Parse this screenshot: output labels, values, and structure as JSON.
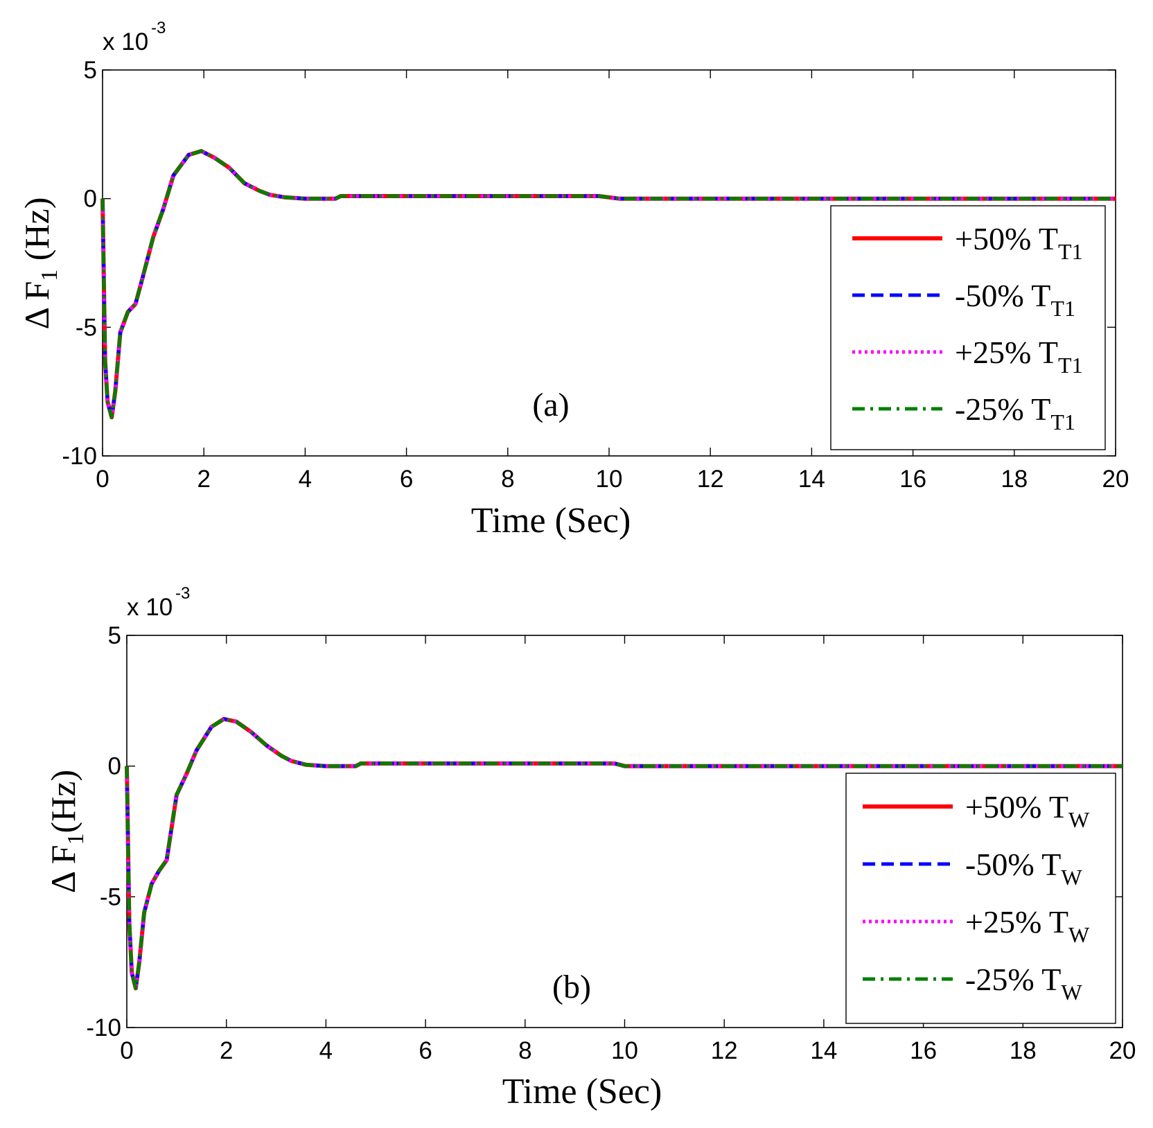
{
  "chart_data": [
    {
      "type": "line",
      "panel_label": "(a)",
      "xlabel": "Time (Sec)",
      "ylabel": "Δ F1 (Hz)",
      "ylabel_parts": {
        "delta": "Δ F",
        "sub": "1",
        "unit": " (Hz)"
      },
      "exponent_base": "x 10",
      "exponent_power": "-3",
      "xlim": [
        0,
        20
      ],
      "ylim": [
        -10,
        5
      ],
      "xticks": [
        0,
        2,
        4,
        6,
        8,
        10,
        12,
        14,
        16,
        18,
        20
      ],
      "yticks": [
        -10,
        -5,
        0,
        5
      ],
      "legend_position": "right",
      "series": [
        {
          "name": "+50% TT1",
          "label_main": "+50% T",
          "label_sub": "T1",
          "color": "#ff0000",
          "dash": "solid"
        },
        {
          "name": "-50% TT1",
          "label_main": "-50% T",
          "label_sub": "T1",
          "color": "#0000ff",
          "dash": "dashed"
        },
        {
          "name": "+25% TT1",
          "label_main": "+25% T",
          "label_sub": "T1",
          "color": "#ff00ff",
          "dash": "dotted"
        },
        {
          "name": "-25% TT1",
          "label_main": "-25% T",
          "label_sub": "T1",
          "color": "#008000",
          "dash": "dashdot"
        }
      ],
      "x": [
        0,
        0.05,
        0.1,
        0.18,
        0.25,
        0.35,
        0.5,
        0.65,
        0.8,
        1.0,
        1.2,
        1.4,
        1.7,
        1.95,
        2.2,
        2.5,
        2.8,
        3.1,
        3.3,
        3.6,
        4.0,
        4.6,
        4.7,
        9.8,
        10.2,
        20
      ],
      "values": [
        0,
        -6.3,
        -7.9,
        -8.5,
        -7.5,
        -5.2,
        -4.4,
        -4.1,
        -3.0,
        -1.5,
        -0.4,
        0.9,
        1.7,
        1.85,
        1.6,
        1.2,
        0.6,
        0.3,
        0.15,
        0.05,
        0,
        0,
        0.1,
        0.1,
        0,
        0
      ]
    },
    {
      "type": "line",
      "panel_label": "(b)",
      "xlabel": "Time (Sec)",
      "ylabel": "Δ F1(Hz)",
      "ylabel_parts": {
        "delta": "Δ F",
        "sub": "1",
        "unit": "(Hz)"
      },
      "exponent_base": "x 10",
      "exponent_power": "-3",
      "xlim": [
        0,
        20
      ],
      "ylim": [
        -10,
        5
      ],
      "xticks": [
        0,
        2,
        4,
        6,
        8,
        10,
        12,
        14,
        16,
        18,
        20
      ],
      "yticks": [
        -10,
        -5,
        0,
        5
      ],
      "legend_position": "right",
      "series": [
        {
          "name": "+50% TW",
          "label_main": "+50% T",
          "label_sub": "W",
          "color": "#ff0000",
          "dash": "solid"
        },
        {
          "name": "-50% TW",
          "label_main": "-50% T",
          "label_sub": "W",
          "color": "#0000ff",
          "dash": "dashed"
        },
        {
          "name": "+25% TW",
          "label_main": "+25% T",
          "label_sub": "W",
          "color": "#ff00ff",
          "dash": "dotted"
        },
        {
          "name": "-25% TW",
          "label_main": "-25% T",
          "label_sub": "W",
          "color": "#008000",
          "dash": "dashdot"
        }
      ],
      "x": [
        0,
        0.05,
        0.1,
        0.18,
        0.25,
        0.35,
        0.5,
        0.65,
        0.8,
        1.0,
        1.2,
        1.4,
        1.7,
        1.95,
        2.2,
        2.5,
        2.8,
        3.1,
        3.3,
        3.6,
        4.0,
        4.6,
        4.7,
        9.8,
        10.0,
        20
      ],
      "values": [
        0,
        -6.0,
        -7.9,
        -8.5,
        -7.5,
        -5.6,
        -4.5,
        -4.0,
        -3.6,
        -1.1,
        -0.3,
        0.6,
        1.5,
        1.8,
        1.7,
        1.3,
        0.8,
        0.4,
        0.2,
        0.05,
        0,
        0,
        0.1,
        0.1,
        0,
        0
      ]
    }
  ]
}
